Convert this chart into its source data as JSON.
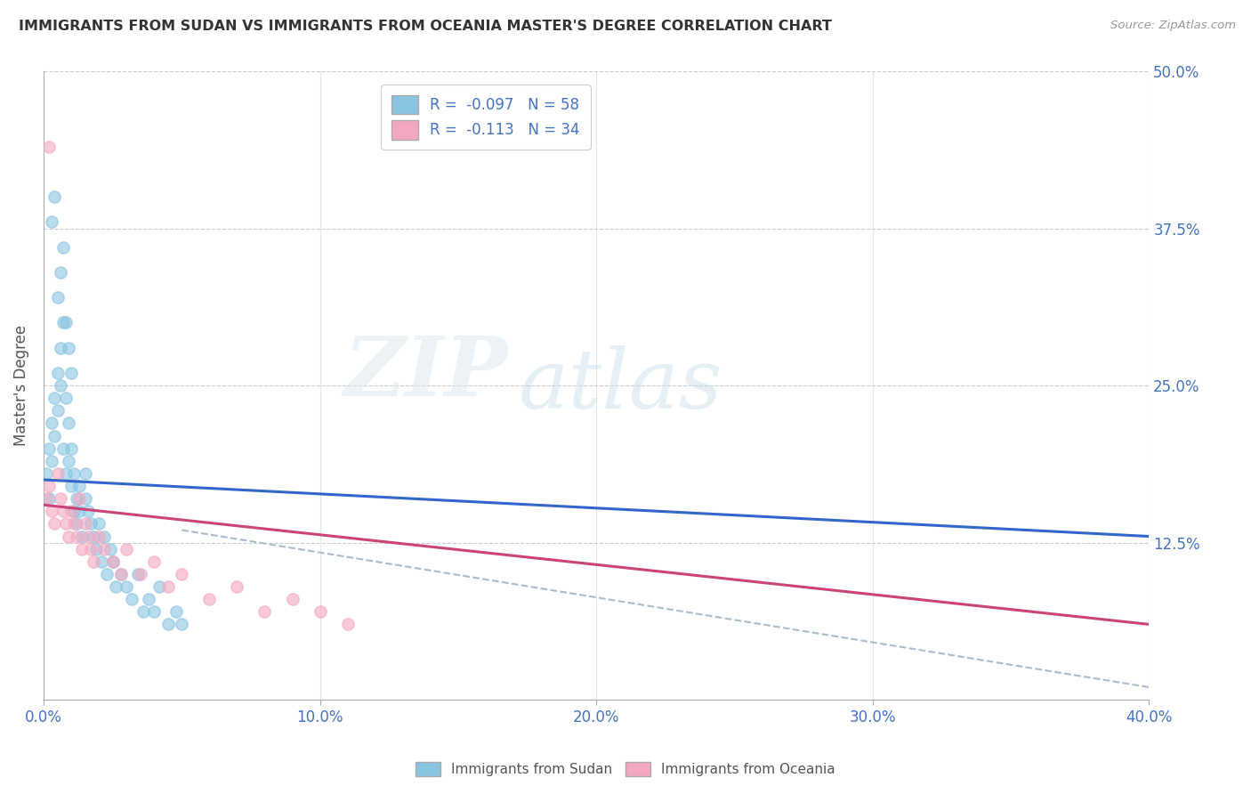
{
  "title": "IMMIGRANTS FROM SUDAN VS IMMIGRANTS FROM OCEANIA MASTER'S DEGREE CORRELATION CHART",
  "source": "Source: ZipAtlas.com",
  "ylabel": "Master's Degree",
  "xlim": [
    0.0,
    0.4
  ],
  "ylim": [
    0.0,
    0.5
  ],
  "xticks": [
    0.0,
    0.1,
    0.2,
    0.3,
    0.4
  ],
  "yticks": [
    0.0,
    0.125,
    0.25,
    0.375,
    0.5
  ],
  "ytick_labels_right": [
    "",
    "12.5%",
    "25.0%",
    "37.5%",
    "50.0%"
  ],
  "xtick_labels": [
    "0.0%",
    "10.0%",
    "20.0%",
    "30.0%",
    "40.0%"
  ],
  "legend_sudan_R": "-0.097",
  "legend_sudan_N": "58",
  "legend_oceania_R": "-0.113",
  "legend_oceania_N": "34",
  "color_sudan": "#89c4e1",
  "color_oceania": "#f4a8bf",
  "color_trendline_sudan": "#3366cc",
  "color_trendline_oceania": "#cc4477",
  "color_trendline_dashed": "#aabbcc",
  "watermark_zip": "ZIP",
  "watermark_atlas": "atlas",
  "sudan_x": [
    0.001,
    0.002,
    0.002,
    0.003,
    0.003,
    0.004,
    0.004,
    0.005,
    0.005,
    0.006,
    0.006,
    0.007,
    0.007,
    0.008,
    0.008,
    0.009,
    0.009,
    0.01,
    0.01,
    0.011,
    0.011,
    0.012,
    0.012,
    0.013,
    0.013,
    0.014,
    0.015,
    0.015,
    0.016,
    0.017,
    0.018,
    0.019,
    0.02,
    0.021,
    0.022,
    0.023,
    0.024,
    0.025,
    0.026,
    0.028,
    0.03,
    0.032,
    0.034,
    0.036,
    0.038,
    0.04,
    0.042,
    0.045,
    0.048,
    0.05,
    0.003,
    0.004,
    0.005,
    0.006,
    0.007,
    0.008,
    0.009,
    0.01
  ],
  "sudan_y": [
    0.18,
    0.2,
    0.16,
    0.22,
    0.19,
    0.24,
    0.21,
    0.26,
    0.23,
    0.28,
    0.25,
    0.3,
    0.2,
    0.24,
    0.18,
    0.19,
    0.22,
    0.17,
    0.2,
    0.15,
    0.18,
    0.16,
    0.14,
    0.15,
    0.17,
    0.13,
    0.16,
    0.18,
    0.15,
    0.14,
    0.13,
    0.12,
    0.14,
    0.11,
    0.13,
    0.1,
    0.12,
    0.11,
    0.09,
    0.1,
    0.09,
    0.08,
    0.1,
    0.07,
    0.08,
    0.07,
    0.09,
    0.06,
    0.07,
    0.06,
    0.38,
    0.4,
    0.32,
    0.34,
    0.36,
    0.3,
    0.28,
    0.26
  ],
  "oceania_x": [
    0.001,
    0.002,
    0.003,
    0.004,
    0.005,
    0.006,
    0.007,
    0.008,
    0.009,
    0.01,
    0.011,
    0.012,
    0.013,
    0.014,
    0.015,
    0.016,
    0.017,
    0.018,
    0.02,
    0.022,
    0.025,
    0.028,
    0.03,
    0.035,
    0.04,
    0.045,
    0.05,
    0.06,
    0.07,
    0.08,
    0.09,
    0.1,
    0.11,
    0.002
  ],
  "oceania_y": [
    0.16,
    0.17,
    0.15,
    0.14,
    0.18,
    0.16,
    0.15,
    0.14,
    0.13,
    0.15,
    0.14,
    0.13,
    0.16,
    0.12,
    0.14,
    0.13,
    0.12,
    0.11,
    0.13,
    0.12,
    0.11,
    0.1,
    0.12,
    0.1,
    0.11,
    0.09,
    0.1,
    0.08,
    0.09,
    0.07,
    0.08,
    0.07,
    0.06,
    0.44
  ],
  "trendline_sudan_x0": 0.0,
  "trendline_sudan_y0": 0.175,
  "trendline_sudan_x1": 0.4,
  "trendline_sudan_y1": 0.13,
  "trendline_oceania_x0": 0.0,
  "trendline_oceania_y0": 0.155,
  "trendline_oceania_x1": 0.4,
  "trendline_oceania_y1": 0.06,
  "trendline_dashed_x0": 0.05,
  "trendline_dashed_y0": 0.135,
  "trendline_dashed_x1": 0.4,
  "trendline_dashed_y1": 0.01
}
